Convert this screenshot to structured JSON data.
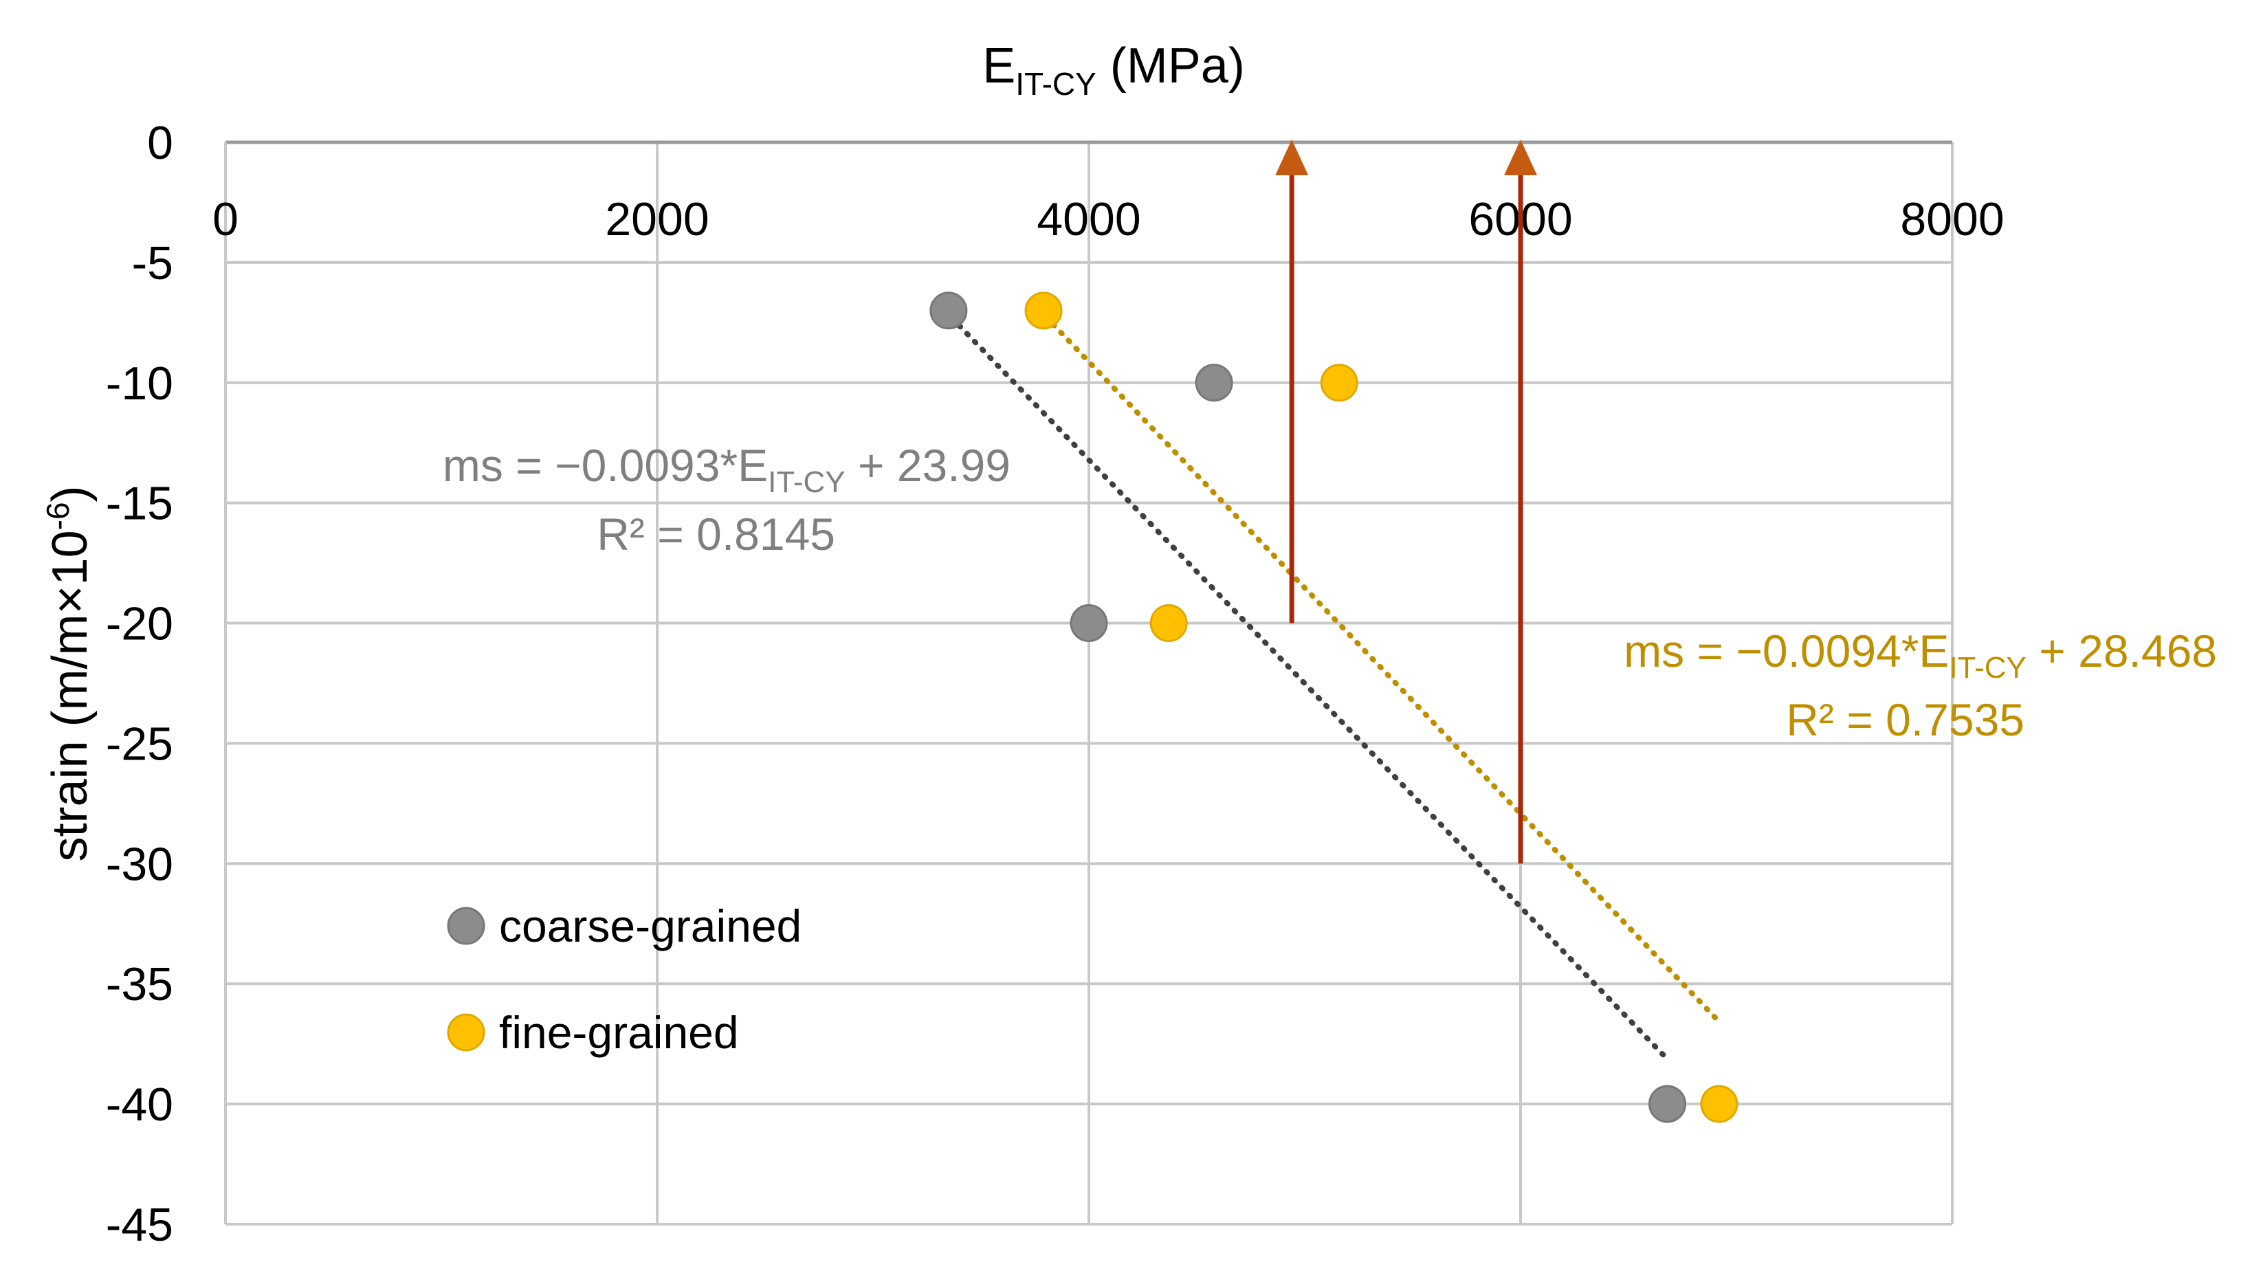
{
  "chart_data": {
    "type": "scatter",
    "title": "",
    "xlabel": {
      "main": "E",
      "sub": "IT-CY",
      "unit": " (MPa)"
    },
    "ylabel": {
      "main": "strain (m/m×10",
      "sup": "-6",
      "close": ")"
    },
    "x_ticks": [
      "0",
      "2000",
      "4000",
      "6000",
      "8000"
    ],
    "y_ticks": [
      "0",
      "-5",
      "-10",
      "-15",
      "-20",
      "-25",
      "-30",
      "-35",
      "-40",
      "-45"
    ],
    "xlim": [
      0,
      8000
    ],
    "ylim": [
      -45,
      0
    ],
    "x_axis_position": "top",
    "grid": true,
    "series": [
      {
        "name": "coarse-grained",
        "color": "#8c8c8c",
        "points": [
          {
            "x": 3350,
            "y": -7
          },
          {
            "x": 4580,
            "y": -10
          },
          {
            "x": 4000,
            "y": -20
          },
          {
            "x": 6680,
            "y": -40
          }
        ],
        "trendline": {
          "color": "#404040",
          "x_range": [
            3400,
            6680
          ],
          "equation_parts": {
            "pre": "ms = −0.0093*E",
            "sub": "IT-CY",
            "post": " + 23.99"
          },
          "r2": "R² = 0.8145"
        }
      },
      {
        "name": "fine-grained",
        "color": "#ffc000",
        "points": [
          {
            "x": 3790,
            "y": -7
          },
          {
            "x": 5160,
            "y": -10
          },
          {
            "x": 4370,
            "y": -20
          },
          {
            "x": 6920,
            "y": -40
          }
        ],
        "trendline": {
          "color": "#bf8f00",
          "x_range": [
            3800,
            6920
          ],
          "equation_parts": {
            "pre": "ms = −0.0094*E",
            "sub": "IT-CY",
            "post": " + 28.468"
          },
          "r2": "R² = 0.7535"
        }
      }
    ],
    "arrows": [
      {
        "x": 4940,
        "y_from": -20,
        "y_to": 0,
        "color": "#c55a11",
        "line_color": "#a52a0a"
      },
      {
        "x": 6000,
        "y_from": -30,
        "y_to": 0,
        "color": "#c55a11",
        "line_color": "#a52a0a"
      }
    ],
    "legend": {
      "placement": "lower-left",
      "items": [
        "coarse-grained",
        "fine-grained"
      ]
    }
  }
}
